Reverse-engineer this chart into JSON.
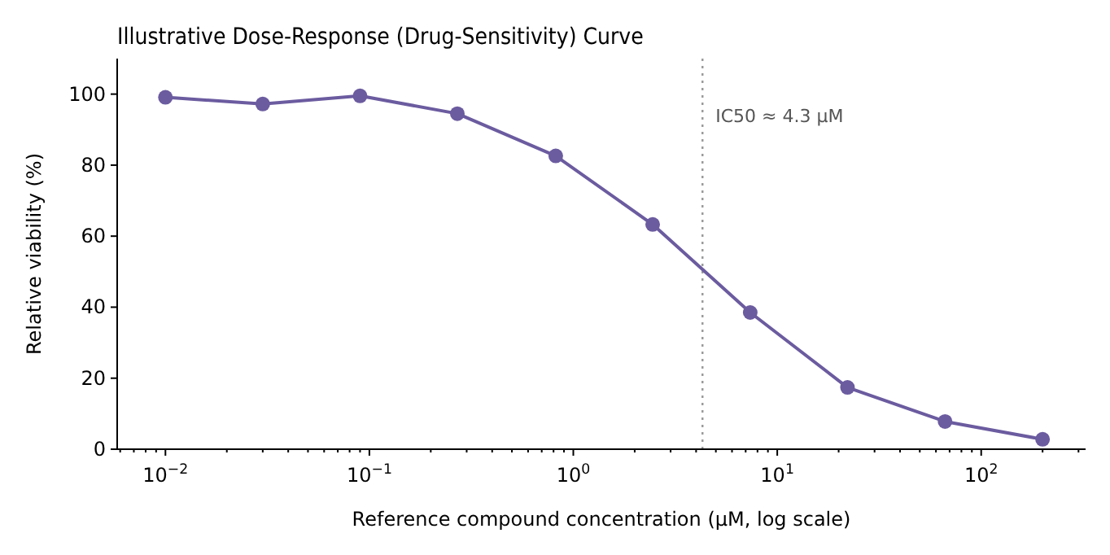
{
  "chart_data": {
    "type": "line",
    "title": "Illustrative Dose-Response (Drug-Sensitivity) Curve",
    "xlabel": "Reference compound concentration (μM, log scale)",
    "ylabel": "Relative viability (%)",
    "log": "x",
    "x": [
      0.01,
      0.03,
      0.09,
      0.27,
      0.82,
      2.45,
      7.37,
      22.1,
      66.5,
      200
    ],
    "series": [
      {
        "color": "#6b5b9f",
        "values": [
          99.1,
          97.2,
          99.5,
          94.5,
          82.6,
          63.3,
          38.5,
          17.4,
          7.8,
          2.8
        ]
      }
    ],
    "marker": "circle",
    "line_style": "solid",
    "grid": false,
    "xlim": [
      0.0058,
      325
    ],
    "ylim": [
      0,
      110
    ],
    "xticks": [
      {
        "value": 0.01,
        "label": "10$^{−2}$"
      },
      {
        "value": 0.1,
        "label": "10$^{−1}$"
      },
      {
        "value": 1,
        "label": "10$^{0}$"
      },
      {
        "value": 10,
        "label": "10$^{1}$"
      },
      {
        "value": 100,
        "label": "10$^{2}$"
      },
      {
        "value": 0.006,
        "label": null
      },
      {
        "value": 0.007,
        "label": null
      },
      {
        "value": 0.008,
        "label": null
      },
      {
        "value": 0.009,
        "label": null
      },
      {
        "value": 0.02,
        "label": null
      },
      {
        "value": 0.03,
        "label": null
      },
      {
        "value": 0.04,
        "label": null
      },
      {
        "value": 0.05,
        "label": null
      },
      {
        "value": 0.06,
        "label": null
      },
      {
        "value": 0.07,
        "label": null
      },
      {
        "value": 0.08,
        "label": null
      },
      {
        "value": 0.09,
        "label": null
      },
      {
        "value": 0.2,
        "label": null
      },
      {
        "value": 0.3,
        "label": null
      },
      {
        "value": 0.4,
        "label": null
      },
      {
        "value": 0.5,
        "label": null
      },
      {
        "value": 0.6,
        "label": null
      },
      {
        "value": 0.7,
        "label": null
      },
      {
        "value": 0.8,
        "label": null
      },
      {
        "value": 0.9,
        "label": null
      },
      {
        "value": 2,
        "label": null
      },
      {
        "value": 3,
        "label": null
      },
      {
        "value": 4,
        "label": null
      },
      {
        "value": 5,
        "label": null
      },
      {
        "value": 6,
        "label": null
      },
      {
        "value": 7,
        "label": null
      },
      {
        "value": 8,
        "label": null
      },
      {
        "value": 9,
        "label": null
      },
      {
        "value": 20,
        "label": null
      },
      {
        "value": 30,
        "label": null
      },
      {
        "value": 40,
        "label": null
      },
      {
        "value": 50,
        "label": null
      },
      {
        "value": 60,
        "label": null
      },
      {
        "value": 70,
        "label": null
      },
      {
        "value": 80,
        "label": null
      },
      {
        "value": 90,
        "label": null
      },
      {
        "value": 200,
        "label": null
      },
      {
        "value": 300,
        "label": null
      }
    ],
    "yticks": [
      0,
      20,
      40,
      60,
      80,
      100
    ],
    "ref_lines": [
      {
        "axis": "x",
        "value": 4.3,
        "label": "IC50 ≈ 4.3 μM",
        "color": "#999999",
        "line_style": "dotted"
      }
    ]
  }
}
